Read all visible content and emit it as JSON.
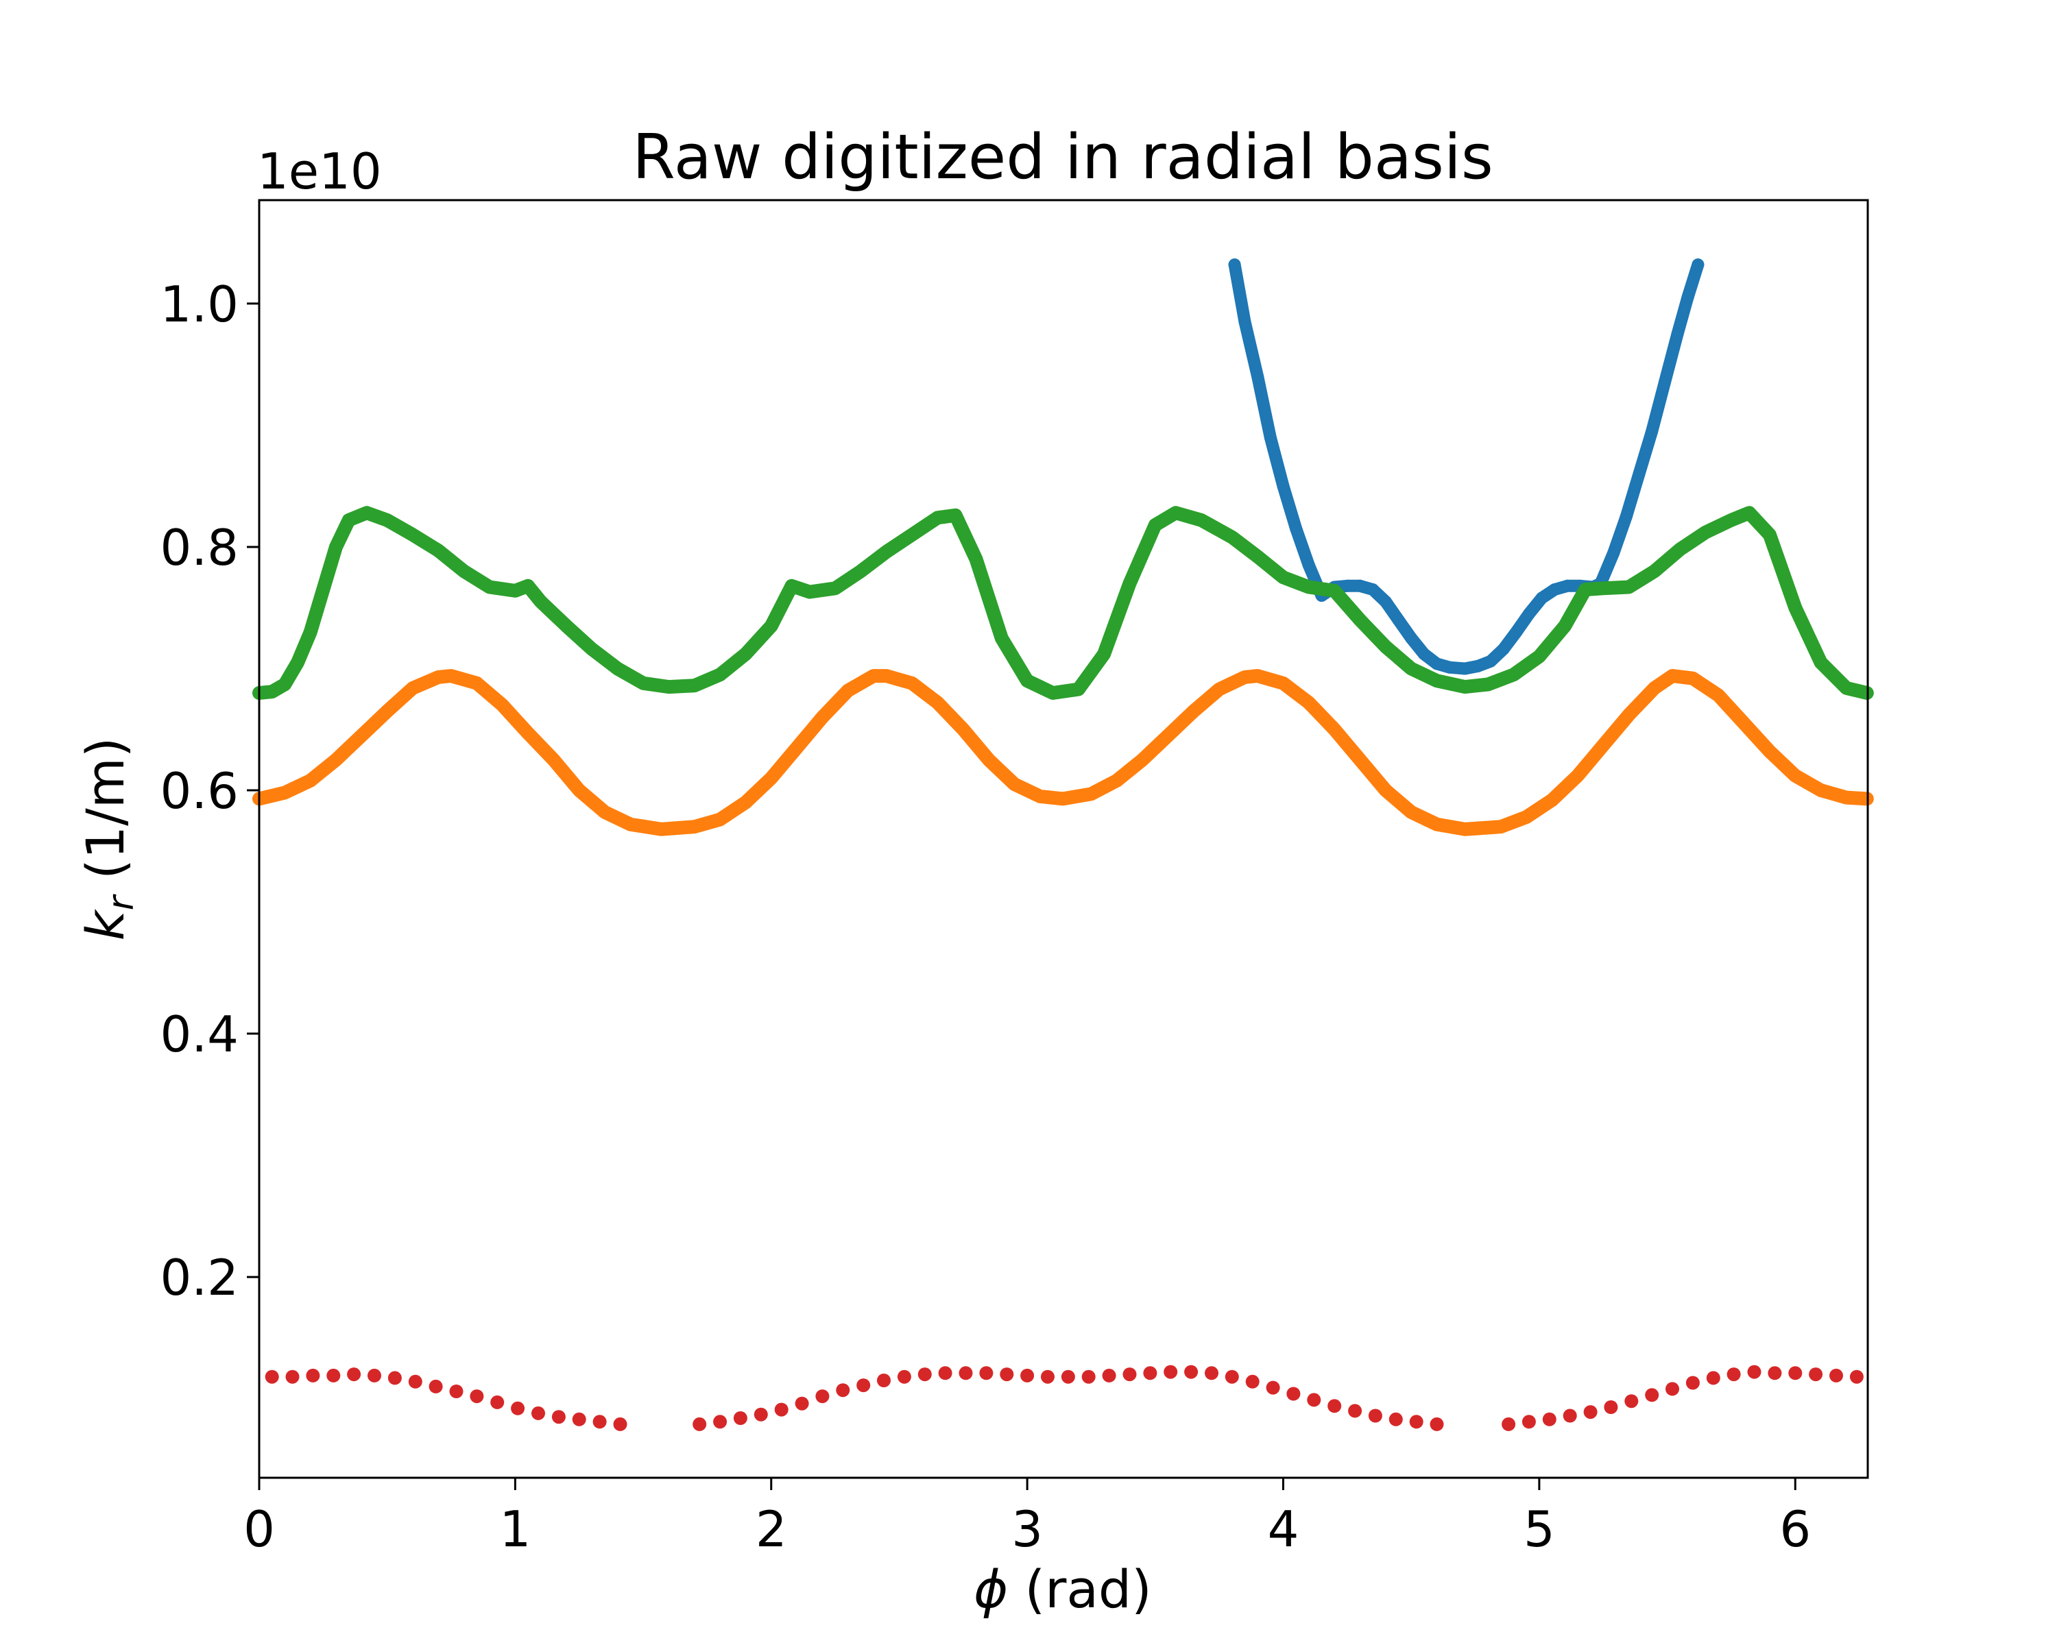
{
  "chart_data": {
    "type": "scatter",
    "title": "Raw digitized in radial basis",
    "xlabel_symbol": "ϕ",
    "xlabel_unit": " (rad)",
    "ylabel_base": "k",
    "ylabel_sub": "r",
    "ylabel_unit": " (1/m)",
    "y_offset_label": "1e10",
    "xlim": [
      0,
      6.2832
    ],
    "ylim": [
      0.035,
      1.085
    ],
    "x_ticks": [
      0,
      1,
      2,
      3,
      4,
      5,
      6
    ],
    "x_tick_labels": [
      "0",
      "1",
      "2",
      "3",
      "4",
      "5",
      "6"
    ],
    "y_ticks": [
      0.2,
      0.4,
      0.6,
      0.8,
      1.0
    ],
    "y_tick_labels": [
      "0.2",
      "0.4",
      "0.6",
      "0.8",
      "1.0"
    ],
    "grid": false,
    "series": [
      {
        "color": "#1f77b4",
        "points": [
          [
            3.81,
            1.032
          ],
          [
            3.85,
            0.985
          ],
          [
            3.9,
            0.94
          ],
          [
            3.95,
            0.89
          ],
          [
            4.0,
            0.85
          ],
          [
            4.05,
            0.815
          ],
          [
            4.1,
            0.785
          ],
          [
            4.15,
            0.76
          ],
          [
            4.2,
            0.767
          ],
          [
            4.25,
            0.768
          ],
          [
            4.3,
            0.768
          ],
          [
            4.35,
            0.765
          ],
          [
            4.4,
            0.755
          ],
          [
            4.45,
            0.74
          ],
          [
            4.5,
            0.725
          ],
          [
            4.55,
            0.712
          ],
          [
            4.6,
            0.704
          ],
          [
            4.65,
            0.701
          ],
          [
            4.71,
            0.7
          ],
          [
            4.76,
            0.702
          ],
          [
            4.81,
            0.706
          ],
          [
            4.86,
            0.716
          ],
          [
            4.91,
            0.73
          ],
          [
            4.96,
            0.745
          ],
          [
            5.01,
            0.758
          ],
          [
            5.06,
            0.765
          ],
          [
            5.11,
            0.768
          ],
          [
            5.16,
            0.768
          ],
          [
            5.21,
            0.767
          ],
          [
            5.24,
            0.77
          ],
          [
            5.29,
            0.795
          ],
          [
            5.34,
            0.825
          ],
          [
            5.39,
            0.86
          ],
          [
            5.44,
            0.895
          ],
          [
            5.49,
            0.935
          ],
          [
            5.54,
            0.975
          ],
          [
            5.58,
            1.005
          ],
          [
            5.62,
            1.032
          ]
        ]
      },
      {
        "color": "#ff7f0e",
        "points": [
          [
            0.0,
            0.593
          ],
          [
            0.1,
            0.598
          ],
          [
            0.2,
            0.608
          ],
          [
            0.3,
            0.625
          ],
          [
            0.4,
            0.645
          ],
          [
            0.5,
            0.665
          ],
          [
            0.6,
            0.684
          ],
          [
            0.7,
            0.693
          ],
          [
            0.75,
            0.694
          ],
          [
            0.85,
            0.688
          ],
          [
            0.95,
            0.67
          ],
          [
            1.05,
            0.647
          ],
          [
            1.15,
            0.625
          ],
          [
            1.25,
            0.6
          ],
          [
            1.35,
            0.582
          ],
          [
            1.45,
            0.572
          ],
          [
            1.57,
            0.568
          ],
          [
            1.7,
            0.57
          ],
          [
            1.8,
            0.576
          ],
          [
            1.9,
            0.59
          ],
          [
            2.0,
            0.61
          ],
          [
            2.1,
            0.635
          ],
          [
            2.2,
            0.66
          ],
          [
            2.3,
            0.682
          ],
          [
            2.4,
            0.694
          ],
          [
            2.45,
            0.694
          ],
          [
            2.55,
            0.688
          ],
          [
            2.65,
            0.672
          ],
          [
            2.75,
            0.65
          ],
          [
            2.85,
            0.625
          ],
          [
            2.95,
            0.605
          ],
          [
            3.05,
            0.595
          ],
          [
            3.14,
            0.593
          ],
          [
            3.25,
            0.597
          ],
          [
            3.35,
            0.608
          ],
          [
            3.45,
            0.625
          ],
          [
            3.55,
            0.645
          ],
          [
            3.65,
            0.665
          ],
          [
            3.75,
            0.683
          ],
          [
            3.85,
            0.693
          ],
          [
            3.9,
            0.694
          ],
          [
            4.0,
            0.688
          ],
          [
            4.1,
            0.672
          ],
          [
            4.2,
            0.65
          ],
          [
            4.3,
            0.625
          ],
          [
            4.4,
            0.6
          ],
          [
            4.5,
            0.582
          ],
          [
            4.6,
            0.572
          ],
          [
            4.71,
            0.568
          ],
          [
            4.85,
            0.57
          ],
          [
            4.95,
            0.578
          ],
          [
            5.05,
            0.592
          ],
          [
            5.15,
            0.612
          ],
          [
            5.25,
            0.637
          ],
          [
            5.35,
            0.662
          ],
          [
            5.45,
            0.684
          ],
          [
            5.52,
            0.694
          ],
          [
            5.6,
            0.692
          ],
          [
            5.7,
            0.678
          ],
          [
            5.8,
            0.655
          ],
          [
            5.9,
            0.632
          ],
          [
            6.0,
            0.612
          ],
          [
            6.1,
            0.6
          ],
          [
            6.2,
            0.594
          ],
          [
            6.28,
            0.593
          ]
        ]
      },
      {
        "color": "#2ca02c",
        "points": [
          [
            0.0,
            0.68
          ],
          [
            0.05,
            0.681
          ],
          [
            0.1,
            0.687
          ],
          [
            0.15,
            0.705
          ],
          [
            0.2,
            0.73
          ],
          [
            0.25,
            0.765
          ],
          [
            0.3,
            0.8
          ],
          [
            0.35,
            0.822
          ],
          [
            0.42,
            0.828
          ],
          [
            0.5,
            0.822
          ],
          [
            0.6,
            0.81
          ],
          [
            0.7,
            0.797
          ],
          [
            0.8,
            0.78
          ],
          [
            0.9,
            0.767
          ],
          [
            1.0,
            0.764
          ],
          [
            1.05,
            0.768
          ],
          [
            1.1,
            0.755
          ],
          [
            1.2,
            0.735
          ],
          [
            1.3,
            0.716
          ],
          [
            1.4,
            0.7
          ],
          [
            1.5,
            0.688
          ],
          [
            1.6,
            0.685
          ],
          [
            1.7,
            0.686
          ],
          [
            1.8,
            0.695
          ],
          [
            1.9,
            0.712
          ],
          [
            2.0,
            0.735
          ],
          [
            2.08,
            0.768
          ],
          [
            2.15,
            0.763
          ],
          [
            2.25,
            0.766
          ],
          [
            2.35,
            0.78
          ],
          [
            2.45,
            0.796
          ],
          [
            2.55,
            0.81
          ],
          [
            2.65,
            0.824
          ],
          [
            2.72,
            0.826
          ],
          [
            2.8,
            0.79
          ],
          [
            2.9,
            0.725
          ],
          [
            3.0,
            0.69
          ],
          [
            3.1,
            0.68
          ],
          [
            3.2,
            0.683
          ],
          [
            3.3,
            0.712
          ],
          [
            3.4,
            0.77
          ],
          [
            3.5,
            0.818
          ],
          [
            3.58,
            0.828
          ],
          [
            3.68,
            0.822
          ],
          [
            3.8,
            0.808
          ],
          [
            3.9,
            0.792
          ],
          [
            4.0,
            0.775
          ],
          [
            4.1,
            0.767
          ],
          [
            4.2,
            0.764
          ],
          [
            4.3,
            0.74
          ],
          [
            4.4,
            0.718
          ],
          [
            4.5,
            0.7
          ],
          [
            4.6,
            0.69
          ],
          [
            4.71,
            0.685
          ],
          [
            4.8,
            0.687
          ],
          [
            4.9,
            0.695
          ],
          [
            5.0,
            0.71
          ],
          [
            5.1,
            0.735
          ],
          [
            5.18,
            0.765
          ],
          [
            5.25,
            0.766
          ],
          [
            5.35,
            0.767
          ],
          [
            5.45,
            0.78
          ],
          [
            5.55,
            0.798
          ],
          [
            5.65,
            0.812
          ],
          [
            5.75,
            0.822
          ],
          [
            5.82,
            0.828
          ],
          [
            5.9,
            0.81
          ],
          [
            6.0,
            0.75
          ],
          [
            6.1,
            0.705
          ],
          [
            6.2,
            0.684
          ],
          [
            6.28,
            0.68
          ]
        ]
      },
      {
        "color": "#d62728",
        "points": [
          [
            0.05,
            0.118
          ],
          [
            0.13,
            0.118
          ],
          [
            0.21,
            0.119
          ],
          [
            0.29,
            0.119
          ],
          [
            0.37,
            0.12
          ],
          [
            0.45,
            0.119
          ],
          [
            0.53,
            0.117
          ],
          [
            0.61,
            0.114
          ],
          [
            0.69,
            0.11
          ],
          [
            0.77,
            0.106
          ],
          [
            0.85,
            0.102
          ],
          [
            0.93,
            0.097
          ],
          [
            1.01,
            0.092
          ],
          [
            1.09,
            0.088
          ],
          [
            1.17,
            0.085
          ],
          [
            1.25,
            0.083
          ],
          [
            1.33,
            0.081
          ],
          [
            1.41,
            0.079
          ],
          [
            1.72,
            0.079
          ],
          [
            1.8,
            0.081
          ],
          [
            1.88,
            0.084
          ],
          [
            1.96,
            0.087
          ],
          [
            2.04,
            0.091
          ],
          [
            2.12,
            0.096
          ],
          [
            2.2,
            0.102
          ],
          [
            2.28,
            0.107
          ],
          [
            2.36,
            0.111
          ],
          [
            2.44,
            0.115
          ],
          [
            2.52,
            0.118
          ],
          [
            2.6,
            0.12
          ],
          [
            2.68,
            0.121
          ],
          [
            2.76,
            0.121
          ],
          [
            2.84,
            0.121
          ],
          [
            2.92,
            0.12
          ],
          [
            3.0,
            0.119
          ],
          [
            3.08,
            0.118
          ],
          [
            3.16,
            0.118
          ],
          [
            3.24,
            0.118
          ],
          [
            3.32,
            0.119
          ],
          [
            3.4,
            0.12
          ],
          [
            3.48,
            0.121
          ],
          [
            3.56,
            0.122
          ],
          [
            3.64,
            0.122
          ],
          [
            3.72,
            0.121
          ],
          [
            3.8,
            0.118
          ],
          [
            3.88,
            0.114
          ],
          [
            3.96,
            0.109
          ],
          [
            4.04,
            0.104
          ],
          [
            4.12,
            0.099
          ],
          [
            4.2,
            0.094
          ],
          [
            4.28,
            0.09
          ],
          [
            4.36,
            0.086
          ],
          [
            4.44,
            0.083
          ],
          [
            4.52,
            0.081
          ],
          [
            4.6,
            0.079
          ],
          [
            4.88,
            0.079
          ],
          [
            4.96,
            0.081
          ],
          [
            5.04,
            0.083
          ],
          [
            5.12,
            0.086
          ],
          [
            5.2,
            0.089
          ],
          [
            5.28,
            0.093
          ],
          [
            5.36,
            0.098
          ],
          [
            5.44,
            0.103
          ],
          [
            5.52,
            0.108
          ],
          [
            5.6,
            0.113
          ],
          [
            5.68,
            0.117
          ],
          [
            5.76,
            0.12
          ],
          [
            5.84,
            0.122
          ],
          [
            5.92,
            0.121
          ],
          [
            6.0,
            0.121
          ],
          [
            6.08,
            0.12
          ],
          [
            6.16,
            0.119
          ],
          [
            6.24,
            0.118
          ]
        ]
      }
    ]
  }
}
